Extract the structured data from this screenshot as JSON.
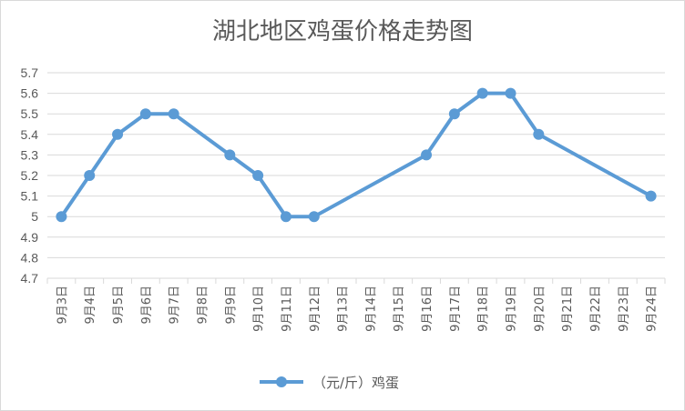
{
  "chart_data": {
    "type": "line",
    "title": "湖北地区鸡蛋价格走势图",
    "categories": [
      "9月3日",
      "9月4日",
      "9月5日",
      "9月6日",
      "9月7日",
      "9月8日",
      "9月9日",
      "9月10日",
      "9月11日",
      "9月12日",
      "9月13日",
      "9月14日",
      "9月15日",
      "9月16日",
      "9月17日",
      "9月18日",
      "9月19日",
      "9月20日",
      "9月21日",
      "9月22日",
      "9月23日",
      "9月24日"
    ],
    "series": [
      {
        "name": "（元/斤）鸡蛋",
        "values": [
          5.0,
          5.2,
          5.4,
          5.5,
          5.5,
          null,
          5.3,
          5.2,
          5.0,
          5.0,
          null,
          null,
          null,
          5.3,
          5.5,
          5.6,
          5.6,
          5.4,
          null,
          null,
          null,
          5.1
        ]
      }
    ],
    "yticks": [
      "4.7",
      "4.8",
      "4.9",
      "5",
      "5.1",
      "5.2",
      "5.3",
      "5.4",
      "5.5",
      "5.6",
      "5.7"
    ],
    "ylim": [
      4.7,
      5.7
    ],
    "grid": true,
    "legend_position": "bottom",
    "color": "#5b9bd5"
  }
}
